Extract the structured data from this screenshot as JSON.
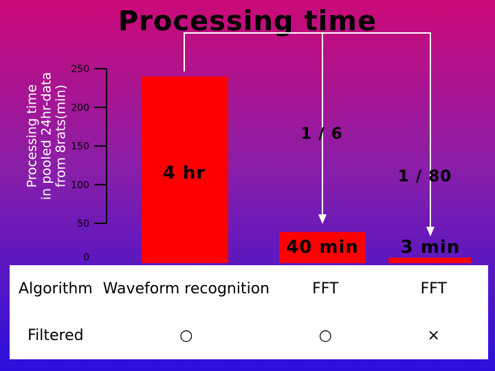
{
  "chart_data": {
    "type": "bar",
    "title": "Processing time",
    "ylabel": "Processing time in pooled 24hr-data from 8rats(min)",
    "ylabel_lines": [
      "Processing time",
      "in pooled 24hr-data",
      "from 8rats(min)"
    ],
    "ylim": [
      0,
      250
    ],
    "yticks": [
      0,
      50,
      100,
      150,
      200,
      250
    ],
    "yticks_label": [
      "0",
      "50",
      "100",
      "150",
      "200",
      "250"
    ],
    "categories": [
      "Waveform recognition",
      "FFT",
      "FFT"
    ],
    "values": [
      240,
      40,
      3
    ],
    "data_labels": [
      "4 hr",
      "40 min",
      "3 min"
    ],
    "bar_color": "#ff0000",
    "annotations": [
      {
        "text": "1 / 6",
        "from": 0,
        "to": 1
      },
      {
        "text": "1 / 80",
        "from": 0,
        "to": 2
      }
    ]
  },
  "table": {
    "algorithm_label": "Algorithm",
    "filtered_label": "Filtered",
    "algorithms": [
      "Waveform recognition",
      "FFT",
      "FFT"
    ],
    "filtered": [
      "○",
      "○",
      "×"
    ]
  }
}
